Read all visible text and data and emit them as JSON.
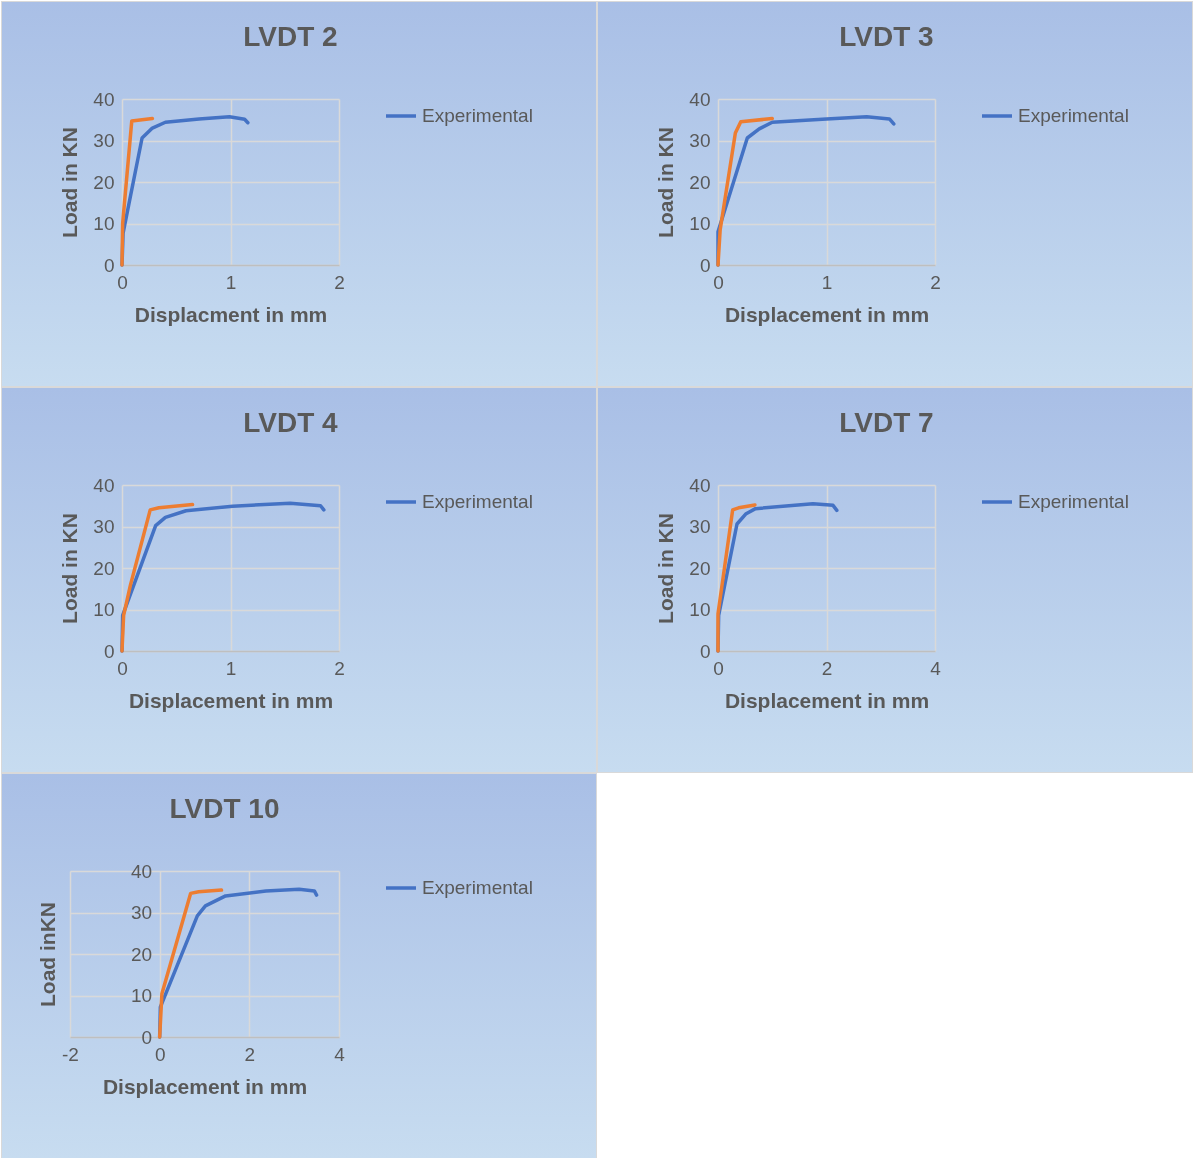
{
  "chart_data": [
    {
      "type": "line",
      "title": "LVDT 2",
      "xlabel": "Displacment in mm",
      "ylabel": "Load in KN",
      "xlim": [
        0,
        2
      ],
      "xticks": [
        0,
        1,
        2
      ],
      "ylim": [
        0,
        40
      ],
      "yticks": [
        0,
        10,
        20,
        30,
        40
      ],
      "grid": true,
      "legend": "right",
      "series": [
        {
          "name": "Experimental",
          "color": "#4472c4",
          "x": [
            0,
            0.01,
            0.185,
            0.28,
            0.4,
            0.71,
            0.99,
            1.13,
            1.16
          ],
          "values": [
            0,
            7.7,
            30.6,
            33,
            34.4,
            35.2,
            35.7,
            35.1,
            34.3
          ]
        },
        {
          "color": "#ed7d31",
          "x": [
            0,
            0.006,
            0.09,
            0.28
          ],
          "values": [
            0,
            10,
            34.7,
            35.3
          ]
        }
      ]
    },
    {
      "type": "line",
      "title": "LVDT 3",
      "xlabel": "Displacement in mm",
      "ylabel": "Load in KN",
      "xlim": [
        0,
        2
      ],
      "xticks": [
        0,
        1,
        2
      ],
      "ylim": [
        0,
        40
      ],
      "yticks": [
        0,
        10,
        20,
        30,
        40
      ],
      "grid": true,
      "legend": "right",
      "series": [
        {
          "name": "Experimental",
          "color": "#4472c4",
          "x": [
            0,
            0,
            0.27,
            0.38,
            0.5,
            1,
            1.37,
            1.58,
            1.62
          ],
          "values": [
            0,
            8,
            30.6,
            32.8,
            34.4,
            35.2,
            35.7,
            35.2,
            34
          ]
        },
        {
          "color": "#ed7d31",
          "x": [
            0,
            0.02,
            0.16,
            0.21,
            0.5
          ],
          "values": [
            0,
            8.5,
            31.8,
            34.5,
            35.3
          ]
        }
      ]
    },
    {
      "type": "line",
      "title": "LVDT 4",
      "xlabel": "Displacement in mm",
      "ylabel": "Load in KN",
      "xlim": [
        0,
        2
      ],
      "xticks": [
        0,
        1,
        2
      ],
      "ylim": [
        0,
        40
      ],
      "yticks": [
        0,
        10,
        20,
        30,
        40
      ],
      "grid": true,
      "legend": "right",
      "series": [
        {
          "name": "Experimental",
          "color": "#4472c4",
          "x": [
            0,
            0.006,
            0.31,
            0.4,
            0.59,
            1.02,
            1.55,
            1.83,
            1.86
          ],
          "values": [
            0,
            8.6,
            30.2,
            32.2,
            33.8,
            34.9,
            35.6,
            35,
            34
          ]
        },
        {
          "color": "#ed7d31",
          "x": [
            0,
            0.015,
            0.077,
            0.26,
            0.34,
            0.65
          ],
          "values": [
            0,
            8.6,
            15.8,
            34,
            34.5,
            35.3
          ]
        }
      ]
    },
    {
      "type": "line",
      "title": "LVDT 7",
      "xlabel": "Displacement in mm",
      "ylabel": "Load in KN",
      "xlim": [
        0,
        4
      ],
      "xticks": [
        0,
        2,
        4
      ],
      "ylim": [
        0,
        40
      ],
      "yticks": [
        0,
        10,
        20,
        30,
        40
      ],
      "grid": true,
      "legend": "right",
      "series": [
        {
          "name": "Experimental",
          "color": "#4472c4",
          "x": [
            0,
            0.012,
            0.35,
            0.51,
            0.69,
            1.75,
            2.12,
            2.19
          ],
          "values": [
            0,
            8.6,
            30.6,
            33,
            34.3,
            35.5,
            35.1,
            33.9
          ]
        },
        {
          "color": "#ed7d31",
          "x": [
            0,
            0,
            0.27,
            0.38,
            0.68
          ],
          "values": [
            0,
            9,
            34,
            34.5,
            35.2
          ]
        }
      ]
    },
    {
      "type": "line",
      "title": "LVDT 10",
      "xlabel": "Displacement in mm",
      "ylabel": "Load inKN",
      "xlim": [
        -2,
        4
      ],
      "xticks": [
        -2,
        0,
        2,
        4
      ],
      "ylim": [
        0,
        40
      ],
      "yticks": [
        0,
        10,
        20,
        30,
        40
      ],
      "grid": true,
      "legend": "right",
      "series": [
        {
          "name": "Experimental",
          "color": "#4472c4",
          "x": [
            0,
            0.015,
            0.84,
            1.02,
            1.47,
            2.37,
            3.11,
            3.45,
            3.5
          ],
          "values": [
            0,
            7.2,
            29.2,
            31.6,
            34,
            35.2,
            35.6,
            35.2,
            34.2
          ]
        },
        {
          "color": "#ed7d31",
          "x": [
            0,
            0.05,
            0.69,
            0.87,
            1.38
          ],
          "values": [
            0,
            10.4,
            34.6,
            35,
            35.4
          ]
        }
      ]
    }
  ]
}
